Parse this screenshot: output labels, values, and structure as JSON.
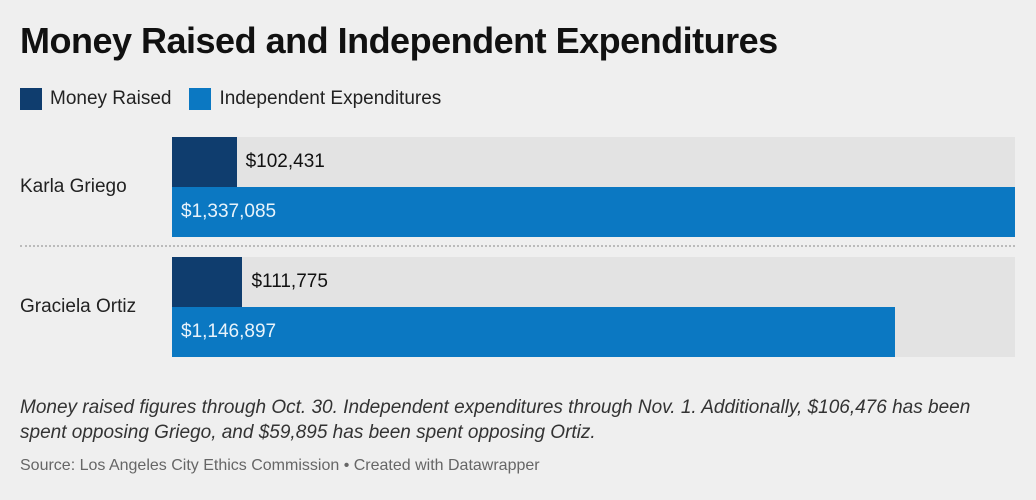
{
  "chart_data": {
    "type": "bar",
    "orientation": "horizontal",
    "title": "Money Raised and Independent Expenditures",
    "categories": [
      "Karla Griego",
      "Graciela Ortiz"
    ],
    "series": [
      {
        "name": "Money Raised",
        "color": "#0f3d6e",
        "values": [
          102431,
          111775
        ],
        "value_labels": [
          "$102,431",
          "$111,775"
        ]
      },
      {
        "name": "Independent Expenditures",
        "color": "#0b78c2",
        "values": [
          1337085,
          1146897
        ],
        "value_labels": [
          "$1,337,085",
          "$1,146,897"
        ]
      }
    ],
    "note": "Money raised figures through Oct. 30. Independent expenditures through Nov. 1. Additionally, $106,476 has been spent opposing Griego, and $59,895 has been spent opposing Ortiz.",
    "source": "Source: Los Angeles City Ethics Commission • Created with Datawrapper"
  }
}
